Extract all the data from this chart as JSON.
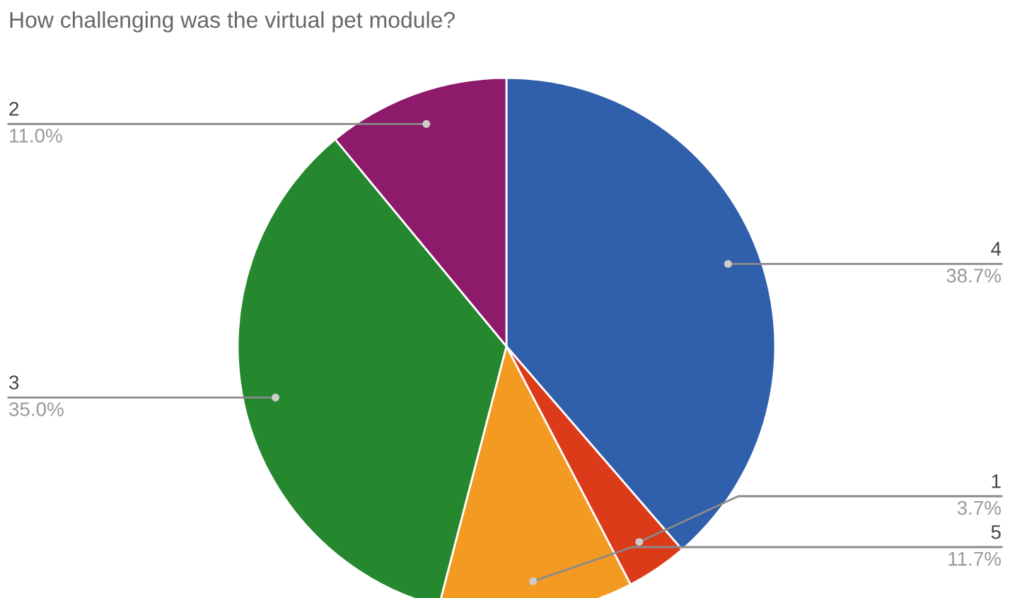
{
  "chart_data": {
    "type": "pie",
    "title": "How challenging was the virtual pet module?",
    "categories": [
      "4",
      "1",
      "5",
      "3",
      "2"
    ],
    "values": [
      38.7,
      3.7,
      11.7,
      35.0,
      11.0
    ],
    "value_labels": [
      "38.7%",
      "3.7%",
      "11.7%",
      "35.0%",
      "11.0%"
    ],
    "colors": [
      "#3060ab",
      "#dc3b1a",
      "#f39a23",
      "#25882f",
      "#8d1a6b"
    ],
    "legend": false
  }
}
